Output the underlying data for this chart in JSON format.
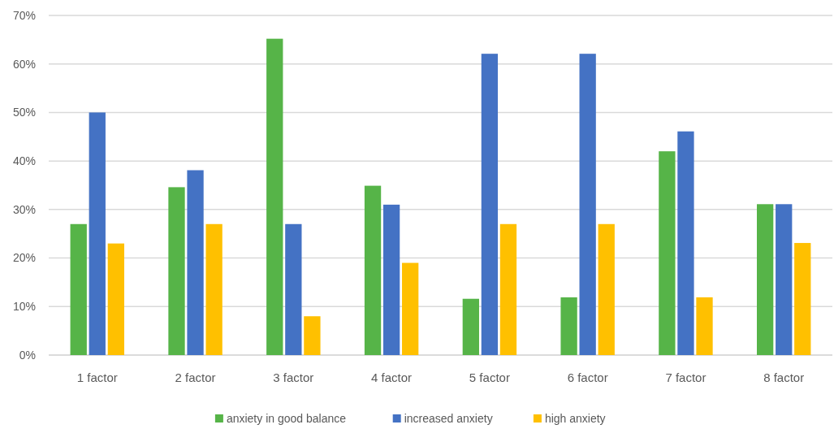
{
  "chart_data": {
    "type": "bar",
    "categories": [
      "1 factor",
      "2 factor",
      "3 factor",
      "4 factor",
      "5 factor",
      "6 factor",
      "7 factor",
      "8 factor"
    ],
    "series": [
      {
        "name": "anxiety in good balance",
        "color": "#56b448",
        "values": [
          27,
          34.6,
          65.2,
          34.9,
          11.6,
          11.9,
          42,
          31.1
        ]
      },
      {
        "name": "increased anxiety",
        "color": "#4472c4",
        "values": [
          50,
          38.1,
          27,
          31,
          62.1,
          62.1,
          46.1,
          31.1
        ]
      },
      {
        "name": "high anxiety",
        "color": "#ffc000",
        "values": [
          23,
          27,
          8,
          19,
          27,
          27,
          11.9,
          23.1
        ]
      }
    ],
    "ylim": [
      0,
      70
    ],
    "yticks": [
      {
        "value": 0,
        "label": "0%"
      },
      {
        "value": 10,
        "label": "10%"
      },
      {
        "value": 20,
        "label": "20%"
      },
      {
        "value": 30,
        "label": "30%"
      },
      {
        "value": 40,
        "label": "40%"
      },
      {
        "value": 50,
        "label": "50%"
      },
      {
        "value": 60,
        "label": "60%"
      },
      {
        "value": 70,
        "label": "70%"
      }
    ],
    "grid": "y",
    "legend": "bottom"
  }
}
